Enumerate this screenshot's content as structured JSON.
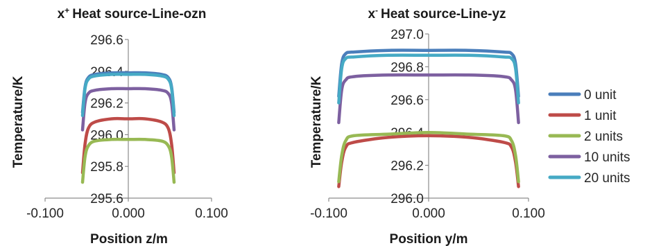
{
  "legend": {
    "placement": "right",
    "entries": [
      {
        "label": "0 unit",
        "color": "#4a7ebb"
      },
      {
        "label": "1 unit",
        "color": "#be4b48"
      },
      {
        "label": "2 units",
        "color": "#98b954"
      },
      {
        "label": "10 units",
        "color": "#7d60a0"
      },
      {
        "label": "20 units",
        "color": "#46aac5"
      }
    ]
  },
  "chart_data": [
    {
      "type": "line",
      "title_prefix": "x",
      "title_sup": "+",
      "title_rest": "Heat source-Line-ozn",
      "xlabel": "Position z/m",
      "ylabel": "Temperature/K",
      "xlim": [
        -0.1,
        0.1
      ],
      "ylim": [
        295.6,
        296.6
      ],
      "xticks": [
        "-0.100",
        "0.000",
        "0.100"
      ],
      "xtick_colors": [
        "#e0201c",
        "#262626",
        "#262626"
      ],
      "yticks": [
        "295.6",
        "295.8",
        "296.0",
        "296.2",
        "296.4",
        "296.6"
      ],
      "grid": false,
      "series": [
        {
          "name": "0 unit",
          "color": "#4a7ebb",
          "x": [
            -0.055,
            -0.052,
            -0.048,
            -0.04,
            -0.02,
            0.0,
            0.02,
            0.04,
            0.048,
            0.052,
            0.055
          ],
          "y": [
            296.14,
            296.3,
            296.36,
            296.38,
            296.39,
            296.39,
            296.39,
            296.38,
            296.36,
            296.3,
            296.14
          ]
        },
        {
          "name": "1 unit",
          "color": "#be4b48",
          "x": [
            -0.055,
            -0.052,
            -0.048,
            -0.04,
            -0.02,
            0.0,
            0.02,
            0.04,
            0.048,
            0.052,
            0.055
          ],
          "y": [
            295.76,
            295.94,
            296.04,
            296.08,
            296.1,
            296.1,
            296.1,
            296.08,
            296.04,
            295.94,
            295.76
          ]
        },
        {
          "name": "2 units",
          "color": "#98b954",
          "x": [
            -0.055,
            -0.052,
            -0.048,
            -0.04,
            -0.02,
            0.0,
            0.02,
            0.04,
            0.048,
            0.052,
            0.055
          ],
          "y": [
            295.7,
            295.86,
            295.93,
            295.96,
            295.97,
            295.97,
            295.97,
            295.96,
            295.93,
            295.86,
            295.7
          ]
        },
        {
          "name": "10 units",
          "color": "#7d60a0",
          "x": [
            -0.055,
            -0.052,
            -0.048,
            -0.04,
            -0.02,
            0.0,
            0.02,
            0.04,
            0.048,
            0.052,
            0.055
          ],
          "y": [
            296.03,
            296.2,
            296.26,
            296.28,
            296.29,
            296.29,
            296.29,
            296.28,
            296.26,
            296.2,
            296.03
          ]
        },
        {
          "name": "20 units",
          "color": "#46aac5",
          "x": [
            -0.055,
            -0.052,
            -0.048,
            -0.04,
            -0.02,
            0.0,
            0.02,
            0.04,
            0.048,
            0.052,
            0.055
          ],
          "y": [
            296.12,
            296.29,
            296.35,
            296.37,
            296.38,
            296.38,
            296.38,
            296.37,
            296.35,
            296.29,
            296.12
          ]
        }
      ]
    },
    {
      "type": "line",
      "title_prefix": "x",
      "title_sup": "-",
      "title_rest": "Heat source-Line-yz",
      "xlabel": "Position y/m",
      "ylabel": "Temperature/K",
      "xlim": [
        -0.1,
        0.1
      ],
      "ylim": [
        296.0,
        297.0
      ],
      "xticks": [
        "-0.100",
        "0.000",
        "0.100"
      ],
      "xtick_colors": [
        "#e0201c",
        "#262626",
        "#262626"
      ],
      "yticks": [
        "296.0",
        "296.2",
        "296.4",
        "296.6",
        "296.8",
        "297.0"
      ],
      "grid": false,
      "series": [
        {
          "name": "0 unit",
          "color": "#4a7ebb",
          "x": [
            -0.09,
            -0.087,
            -0.083,
            -0.075,
            -0.04,
            0.0,
            0.04,
            0.075,
            0.083,
            0.087,
            0.09
          ],
          "y": [
            296.62,
            296.82,
            296.88,
            296.89,
            296.9,
            296.9,
            296.9,
            296.89,
            296.88,
            296.82,
            296.62
          ]
        },
        {
          "name": "1 unit",
          "color": "#be4b48",
          "x": [
            -0.09,
            -0.087,
            -0.083,
            -0.075,
            -0.04,
            0.0,
            0.04,
            0.075,
            0.083,
            0.087,
            0.09
          ],
          "y": [
            296.07,
            296.22,
            296.31,
            296.34,
            296.37,
            296.38,
            296.37,
            296.34,
            296.31,
            296.22,
            296.07
          ]
        },
        {
          "name": "2 units",
          "color": "#98b954",
          "x": [
            -0.09,
            -0.087,
            -0.083,
            -0.075,
            -0.04,
            0.0,
            0.04,
            0.075,
            0.083,
            0.087,
            0.09
          ],
          "y": [
            296.1,
            296.26,
            296.35,
            296.38,
            296.39,
            296.4,
            296.39,
            296.38,
            296.35,
            296.26,
            296.1
          ]
        },
        {
          "name": "10 units",
          "color": "#7d60a0",
          "x": [
            -0.09,
            -0.087,
            -0.083,
            -0.075,
            -0.04,
            0.0,
            0.04,
            0.075,
            0.083,
            0.087,
            0.09
          ],
          "y": [
            296.46,
            296.66,
            296.72,
            296.74,
            296.75,
            296.75,
            296.75,
            296.74,
            296.72,
            296.66,
            296.46
          ]
        },
        {
          "name": "20 units",
          "color": "#46aac5",
          "x": [
            -0.09,
            -0.087,
            -0.083,
            -0.075,
            -0.04,
            0.0,
            0.04,
            0.075,
            0.083,
            0.087,
            0.09
          ],
          "y": [
            296.58,
            296.79,
            296.85,
            296.86,
            296.87,
            296.87,
            296.87,
            296.86,
            296.85,
            296.79,
            296.58
          ]
        }
      ]
    }
  ]
}
